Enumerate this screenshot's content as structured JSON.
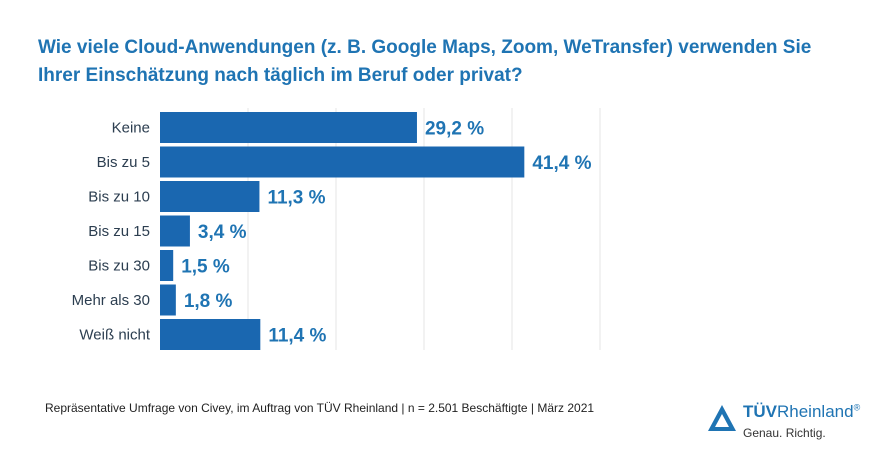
{
  "title": "Wie viele Cloud-Anwendungen (z. B. Google Maps, Zoom, WeTransfer) verwenden Sie Ihrer Einschätzung nach täglich im Beruf oder privat?",
  "footnote": "Repräsentative Umfrage von Civey, im Auftrag von TÜV Rheinland | n = 2.501 Beschäftigte | März 2021",
  "logo": {
    "brand_bold": "TÜV",
    "brand_regular": "Rheinland",
    "registered": "®",
    "tagline": "Genau. Richtig."
  },
  "colors": {
    "bar": "#1a67b0",
    "title": "#1f74b3",
    "value_label": "#1f74b3",
    "grid": "#e4e4e4"
  },
  "chart_data": {
    "type": "bar",
    "orientation": "horizontal",
    "categories": [
      "Keine",
      "Bis zu 5",
      "Bis zu 10",
      "Bis zu 15",
      "Bis zu 30",
      "Mehr als 30",
      "Weiß nicht"
    ],
    "values": [
      29.2,
      41.4,
      11.3,
      3.4,
      1.5,
      1.8,
      11.4
    ],
    "value_labels": [
      "29,2 %",
      "41,4 %",
      "11,3 %",
      "3,4 %",
      "1,5 %",
      "1,8 %",
      "11,4 %"
    ],
    "unit": "%",
    "xlim": [
      0,
      50
    ],
    "grid": true
  }
}
